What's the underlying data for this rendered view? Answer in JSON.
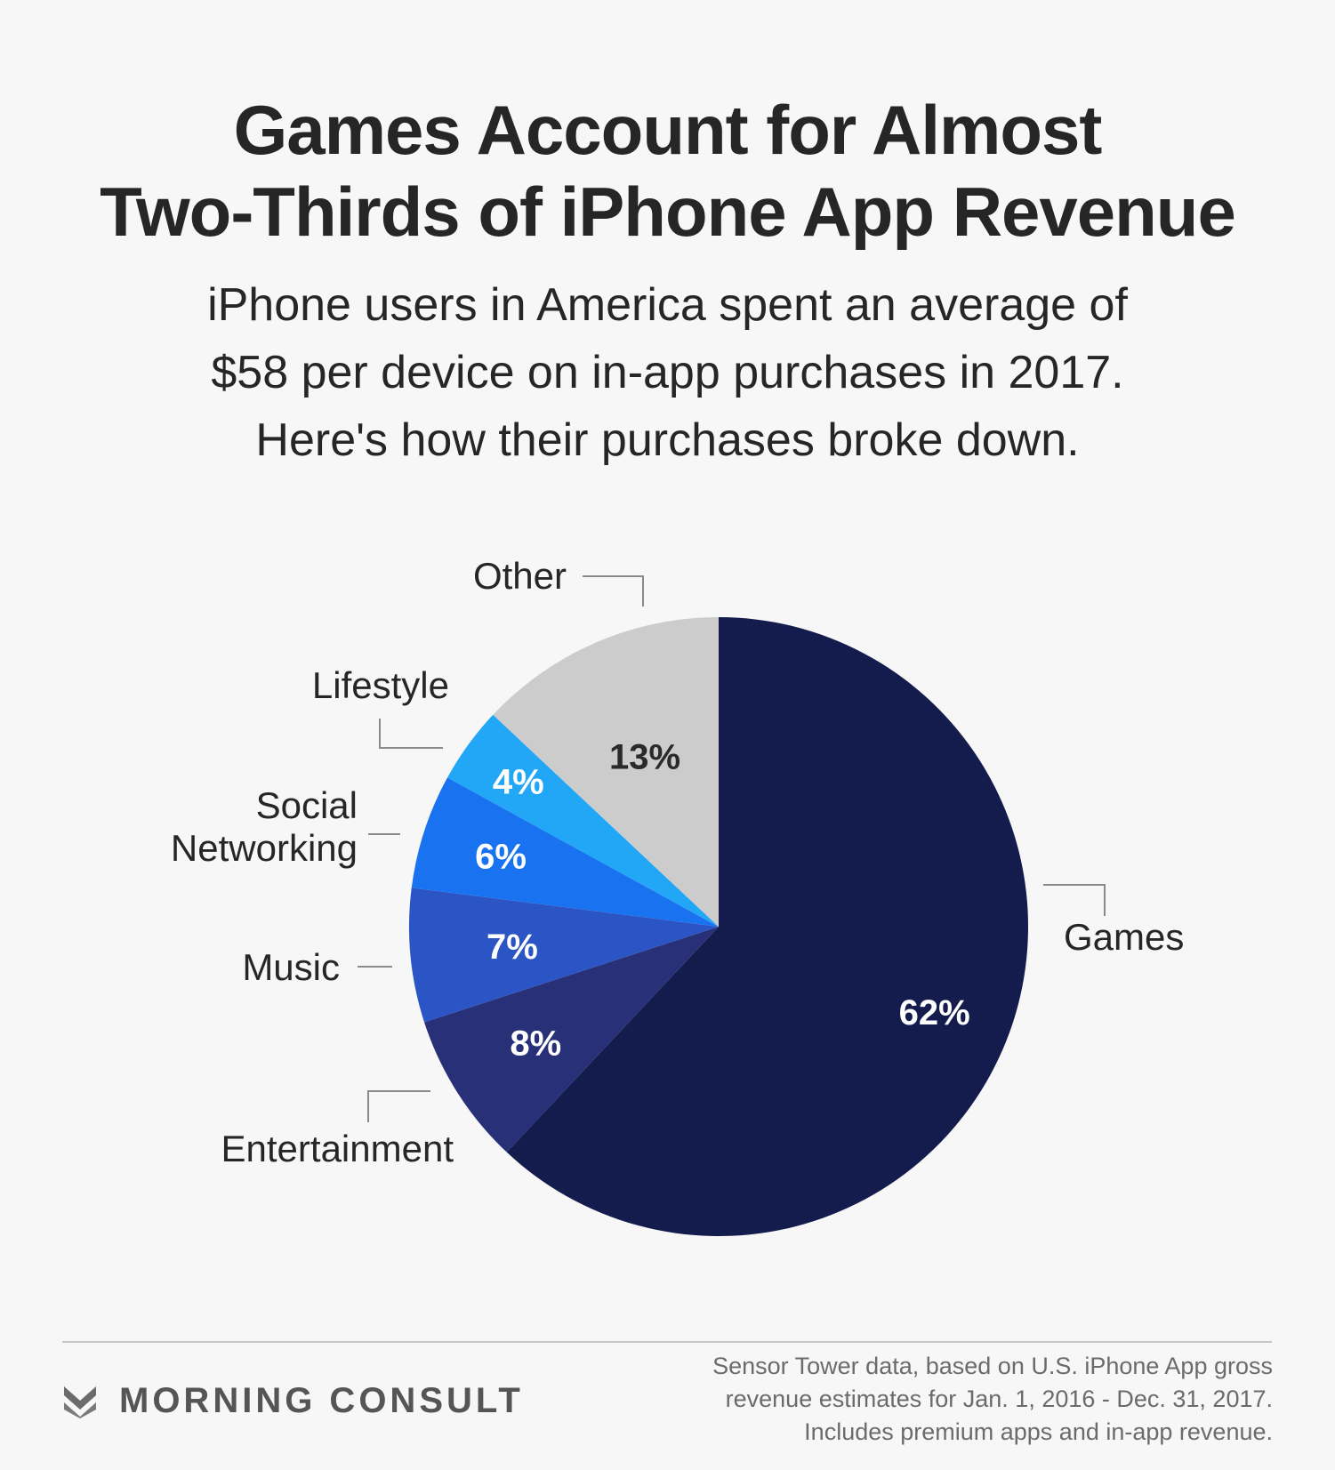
{
  "title_line1": "Games Account for Almost",
  "title_line2": "Two-Thirds of iPhone App Revenue",
  "subtitle_line1": "iPhone users in America spent an average of",
  "subtitle_line2": "$58 per device on in-app purchases in 2017.",
  "subtitle_line3": "Here's how their purchases broke down.",
  "chart_data": {
    "type": "pie",
    "title": "Games Account for Almost Two-Thirds of iPhone App Revenue",
    "slices": [
      {
        "label": "Games",
        "value": 62,
        "value_label": "62%",
        "color": "#141b4d",
        "text_color": "#ffffff"
      },
      {
        "label": "Entertainment",
        "value": 8,
        "value_label": "8%",
        "color": "#283078",
        "text_color": "#ffffff"
      },
      {
        "label": "Music",
        "value": 7,
        "value_label": "7%",
        "color": "#2b54c4",
        "text_color": "#ffffff"
      },
      {
        "label": "Social Networking",
        "label_lines": [
          "Social",
          "Networking"
        ],
        "value": 6,
        "value_label": "6%",
        "color": "#1972ef",
        "text_color": "#ffffff"
      },
      {
        "label": "Lifestyle",
        "value": 4,
        "value_label": "4%",
        "color": "#22a7f7",
        "text_color": "#ffffff"
      },
      {
        "label": "Other",
        "value": 13,
        "value_label": "13%",
        "color": "#cccccc",
        "text_color": "#2a2a2a"
      }
    ],
    "direction": "clockwise from top"
  },
  "brand": {
    "name": "MORNING CONSULT",
    "mark_color": "#6b6b6b"
  },
  "source_line1": "Sensor Tower data, based on U.S. iPhone App gross",
  "source_line2": "revenue estimates for Jan. 1, 2016 - Dec. 31, 2017.",
  "source_line3": "Includes premium apps and in-app revenue."
}
